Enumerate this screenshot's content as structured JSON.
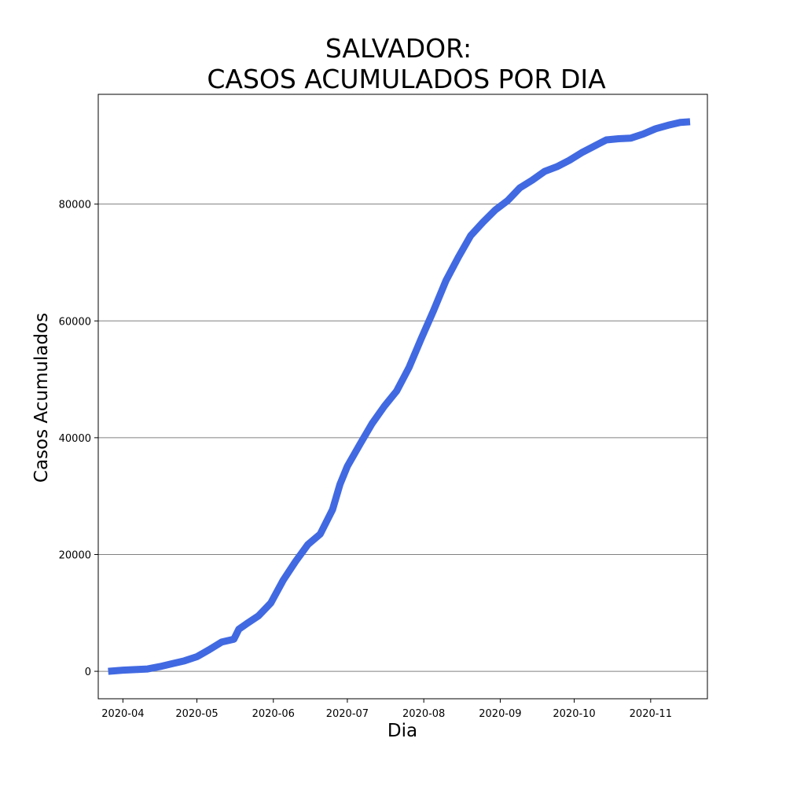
{
  "chart_data": {
    "type": "line",
    "title_lines": [
      "SALVADOR:",
      "CASOS ACUMULADOS POR DIA"
    ],
    "xlabel": "Dia",
    "ylabel": "Casos Acumulados",
    "x_ticks": [
      "2020-04-01",
      "2020-05-01",
      "2020-06-01",
      "2020-07-01",
      "2020-08-01",
      "2020-09-01",
      "2020-10-01",
      "2020-11-01"
    ],
    "x_tick_labels": [
      "2020-04",
      "2020-05",
      "2020-06",
      "2020-07",
      "2020-08",
      "2020-09",
      "2020-10",
      "2020-11"
    ],
    "y_ticks": [
      0,
      20000,
      40000,
      60000,
      80000
    ],
    "y_tick_labels": [
      "0",
      "20000",
      "40000",
      "60000",
      "80000"
    ],
    "xlim": [
      "2020-03-22",
      "2020-11-24"
    ],
    "ylim": [
      -4700,
      98800
    ],
    "grid": "horizontal",
    "line_color": "#4169e1",
    "series": [
      {
        "x": [
          "2020-03-26",
          "2020-04-01",
          "2020-04-06",
          "2020-04-11",
          "2020-04-16",
          "2020-04-21",
          "2020-04-26",
          "2020-05-01",
          "2020-05-06",
          "2020-05-11",
          "2020-05-16",
          "2020-05-18",
          "2020-05-21",
          "2020-05-26",
          "2020-05-31",
          "2020-06-05",
          "2020-06-10",
          "2020-06-15",
          "2020-06-20",
          "2020-06-25",
          "2020-06-28",
          "2020-07-01",
          "2020-07-06",
          "2020-07-11",
          "2020-07-16",
          "2020-07-21",
          "2020-07-26",
          "2020-07-31",
          "2020-08-05",
          "2020-08-10",
          "2020-08-15",
          "2020-08-20",
          "2020-08-25",
          "2020-08-30",
          "2020-09-04",
          "2020-09-09",
          "2020-09-14",
          "2020-09-19",
          "2020-09-24",
          "2020-09-29",
          "2020-10-04",
          "2020-10-09",
          "2020-10-14",
          "2020-10-19",
          "2020-10-24",
          "2020-10-29",
          "2020-11-03",
          "2020-11-08",
          "2020-11-13",
          "2020-11-17"
        ],
        "values": [
          0,
          200,
          300,
          400,
          800,
          1300,
          1800,
          2500,
          3700,
          5000,
          5500,
          7200,
          8100,
          9500,
          11700,
          15600,
          18800,
          21700,
          23500,
          27700,
          32000,
          35100,
          38800,
          42400,
          45400,
          48000,
          52000,
          57000,
          61800,
          66900,
          70900,
          74600,
          76900,
          79000,
          80600,
          82800,
          84100,
          85600,
          86400,
          87500,
          88800,
          89900,
          91000,
          91200,
          91300,
          92000,
          92900,
          93500,
          94000,
          94100
        ]
      }
    ]
  }
}
